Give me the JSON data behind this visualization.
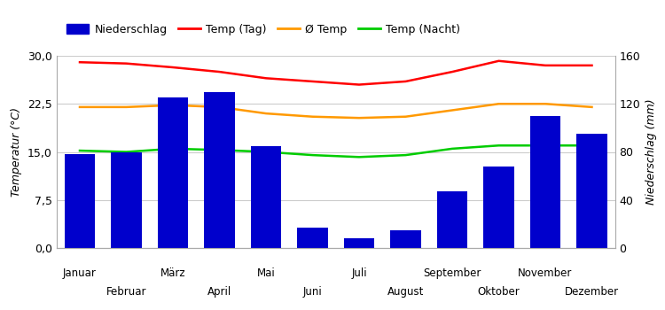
{
  "months": [
    "Januar",
    "Februar",
    "März",
    "April",
    "Mai",
    "Juni",
    "Juli",
    "August",
    "September",
    "Oktober",
    "November",
    "Dezember"
  ],
  "niederschlag_mm": [
    78,
    80,
    125,
    130,
    85,
    17,
    8,
    15,
    47,
    68,
    110,
    95
  ],
  "temp_tag": [
    29.0,
    28.8,
    28.2,
    27.5,
    26.5,
    26.0,
    25.5,
    26.0,
    27.5,
    29.2,
    28.5,
    28.5
  ],
  "temp_avg": [
    22.0,
    22.0,
    22.3,
    22.0,
    21.0,
    20.5,
    20.3,
    20.5,
    21.5,
    22.5,
    22.5,
    22.0
  ],
  "temp_nacht": [
    15.2,
    15.0,
    15.5,
    15.3,
    15.0,
    14.5,
    14.2,
    14.5,
    15.5,
    16.0,
    16.0,
    16.0
  ],
  "bar_color": "#0000cc",
  "line_tag_color": "#ff0000",
  "line_avg_color": "#ff9900",
  "line_nacht_color": "#00cc00",
  "ylabel_left": "Temperatur (°C)",
  "ylabel_right": "Niederschlag (mm)",
  "temp_ylim": [
    0,
    30
  ],
  "temp_yticks": [
    0.0,
    7.5,
    15.0,
    22.5,
    30.0
  ],
  "temp_yticklabels": [
    "0,0",
    "7,5",
    "15,0",
    "22,5",
    "30,0"
  ],
  "precip_ylim": [
    0,
    160
  ],
  "precip_yticks": [
    0,
    40,
    80,
    120,
    160
  ],
  "legend_labels": [
    "Niederschlag",
    "Temp (Tag)",
    "Ø Temp",
    "Temp (Nacht)"
  ],
  "background_color": "#ffffff",
  "grid_color": "#cccccc",
  "bar_width": 0.65
}
